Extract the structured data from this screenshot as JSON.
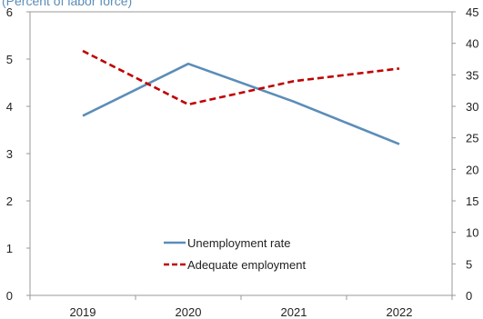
{
  "chart_data": {
    "type": "line",
    "subtitle": "(Percent of labor force)",
    "categories": [
      "2019",
      "2020",
      "2021",
      "2022"
    ],
    "y_left": {
      "ylim": [
        0,
        6
      ],
      "ticks": [
        "0",
        "1",
        "2",
        "3",
        "4",
        "5",
        "6"
      ]
    },
    "y_right": {
      "ylim": [
        0,
        45
      ],
      "ticks": [
        "0",
        "5",
        "10",
        "15",
        "20",
        "25",
        "30",
        "35",
        "40",
        "45"
      ]
    },
    "series": [
      {
        "name": "Unemployment rate",
        "axis": "left",
        "values": [
          3.8,
          4.9,
          4.1,
          3.2
        ],
        "color": "#5b8db8",
        "style": "solid"
      },
      {
        "name": "Adequate employment",
        "axis": "right",
        "values": [
          38.8,
          30.3,
          34.0,
          36.0
        ],
        "color": "#c00000",
        "style": "dashed"
      }
    ],
    "legend_position": "bottom-center",
    "grid": false
  },
  "colors": {
    "subtitle": "#5b8db8",
    "axis": "#999999"
  }
}
